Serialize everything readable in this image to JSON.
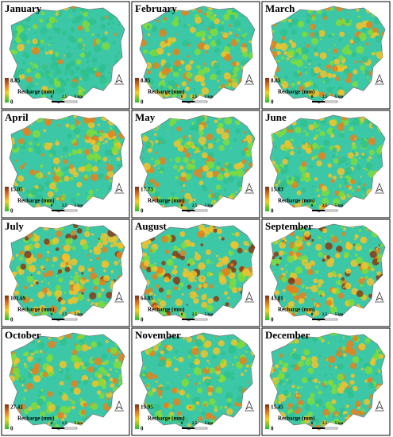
{
  "panels": [
    {
      "title": "January",
      "legend": {
        "max": 8.85,
        "title": "Recharge (mm)",
        "min": 0
      },
      "scale": [
        0,
        2.5,
        "5 km"
      ]
    },
    {
      "title": "February",
      "legend": {
        "max": 8.85,
        "title": "Recharge (mm)",
        "min": 0
      },
      "scale": [
        0,
        2.5,
        "5 km"
      ]
    },
    {
      "title": "March",
      "legend": {
        "max": 8.85,
        "title": "Recharge (mm)",
        "min": 0
      },
      "scale": [
        0,
        2.5,
        "5 km"
      ]
    },
    {
      "title": "April",
      "legend": {
        "max": 15.05,
        "title": "Recharge (mm)",
        "min": 0
      },
      "scale": [
        0,
        2.5,
        "5 km"
      ]
    },
    {
      "title": "May",
      "legend": {
        "max": 17.73,
        "title": "Recharge (mm)",
        "min": 0
      },
      "scale": [
        0,
        2.5,
        "5 km"
      ]
    },
    {
      "title": "June",
      "legend": {
        "max": 15.03,
        "title": "Recharge (mm)",
        "min": 0
      },
      "scale": [
        0,
        2.5,
        "5 km"
      ]
    },
    {
      "title": "July",
      "legend": {
        "max": 101.69,
        "title": "Recharge (mm)",
        "min": 0
      },
      "scale": [
        0,
        2.5,
        "5 km"
      ]
    },
    {
      "title": "August",
      "legend": {
        "max": 64.85,
        "title": "Recharge (mm)",
        "min": 0
      },
      "scale": [
        0,
        2.5,
        "5 km"
      ]
    },
    {
      "title": "September",
      "legend": {
        "max": 43.01,
        "title": "Recharge (mm)",
        "min": 0
      },
      "scale": [
        0,
        2.5,
        "5 km"
      ]
    },
    {
      "title": "October",
      "legend": {
        "max": 27.42,
        "title": "Recharge (mm)",
        "min": 0
      },
      "scale": [
        0,
        2.5,
        "5 km"
      ]
    },
    {
      "title": "November",
      "legend": {
        "max": 19.95,
        "title": "Recharge (mm)",
        "min": 0
      },
      "scale": [
        0,
        2.5,
        "5 km"
      ]
    },
    {
      "title": "December",
      "legend": {
        "max": 15.45,
        "title": "Recharge (mm)",
        "min": 0
      },
      "scale": [
        0,
        2.5,
        "5 km"
      ]
    }
  ]
}
